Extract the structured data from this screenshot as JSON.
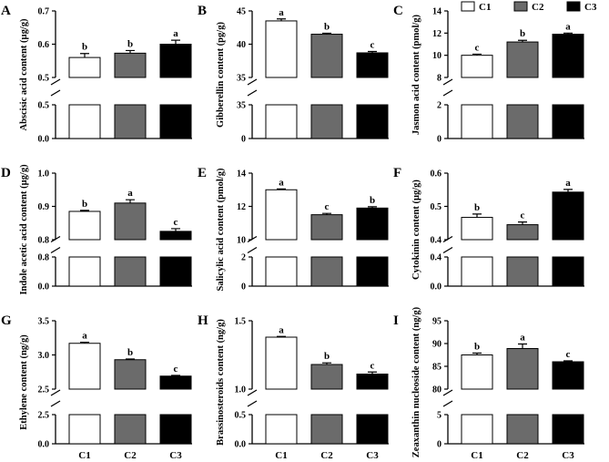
{
  "series_colors": {
    "C1": "#ffffff",
    "C2": "#6b6b6b",
    "C3": "#000000"
  },
  "legend": {
    "items": [
      "C1",
      "C2",
      "C3"
    ]
  },
  "chart_data": [
    {
      "type": "bar",
      "panel": "A",
      "ylabel": "Abscisic acid content (µg/g)",
      "categories": [
        "C1",
        "C2",
        "C3"
      ],
      "values": [
        0.56,
        0.573,
        0.6
      ],
      "errors": [
        0.012,
        0.008,
        0.012
      ],
      "significance": [
        "b",
        "b",
        "a"
      ],
      "upper_range": [
        0.5,
        0.7
      ],
      "upper_ticks": [
        "0.5",
        "0.6",
        "0.7"
      ],
      "lower_range": [
        0.0,
        0.5
      ],
      "lower_ticks": [
        "0.0",
        "0.5"
      ],
      "show_x_labels": false
    },
    {
      "type": "bar",
      "panel": "B",
      "ylabel": "Gibberellin content (pg/g)",
      "categories": [
        "C1",
        "C2",
        "C3"
      ],
      "values": [
        43.5,
        41.5,
        38.7
      ],
      "errors": [
        0.3,
        0.15,
        0.2
      ],
      "significance": [
        "a",
        "b",
        "c"
      ],
      "upper_range": [
        35,
        45
      ],
      "upper_ticks": [
        "35",
        "40",
        "45"
      ],
      "lower_range": [
        0,
        35
      ],
      "lower_ticks": [
        "0",
        "35"
      ],
      "show_x_labels": false
    },
    {
      "type": "bar",
      "panel": "C",
      "ylabel": "Jasmon acid content (pmol/g)",
      "categories": [
        "C1",
        "C2",
        "C3"
      ],
      "values": [
        10.0,
        11.2,
        11.9
      ],
      "errors": [
        0.1,
        0.15,
        0.1
      ],
      "significance": [
        "c",
        "b",
        "a"
      ],
      "upper_range": [
        8,
        14
      ],
      "upper_ticks": [
        "8",
        "10",
        "12",
        "14"
      ],
      "lower_range": [
        0,
        2
      ],
      "lower_ticks": [
        "0",
        "2"
      ],
      "show_x_labels": false
    },
    {
      "type": "bar",
      "panel": "D",
      "ylabel": "Indole acetic acid content (µg/g)",
      "categories": [
        "C1",
        "C2",
        "C3"
      ],
      "values": [
        0.885,
        0.91,
        0.825
      ],
      "errors": [
        0.003,
        0.01,
        0.008
      ],
      "significance": [
        "b",
        "a",
        "c"
      ],
      "upper_range": [
        0.8,
        1.0
      ],
      "upper_ticks": [
        "0.8",
        "0.9",
        "1.0"
      ],
      "lower_range": [
        0.0,
        0.8
      ],
      "lower_ticks": [
        "0.0",
        "0.8"
      ],
      "show_x_labels": false
    },
    {
      "type": "bar",
      "panel": "E",
      "ylabel": "Salicylic acid content (pmol/g)",
      "categories": [
        "C1",
        "C2",
        "C3"
      ],
      "values": [
        13.0,
        11.5,
        11.9
      ],
      "errors": [
        0.05,
        0.08,
        0.08
      ],
      "significance": [
        "a",
        "c",
        "b"
      ],
      "upper_range": [
        10,
        14
      ],
      "upper_ticks": [
        "10",
        "12",
        "14"
      ],
      "lower_range": [
        0,
        2
      ],
      "lower_ticks": [
        "0",
        "2"
      ],
      "show_x_labels": false
    },
    {
      "type": "bar",
      "panel": "F",
      "ylabel": "Cytokinin content (µg/g)",
      "categories": [
        "C1",
        "C2",
        "C3"
      ],
      "values": [
        0.467,
        0.445,
        0.543
      ],
      "errors": [
        0.01,
        0.008,
        0.008
      ],
      "significance": [
        "b",
        "c",
        "a"
      ],
      "upper_range": [
        0.4,
        0.6
      ],
      "upper_ticks": [
        "0.4",
        "0.5",
        "0.6"
      ],
      "lower_range": [
        0.0,
        0.4
      ],
      "lower_ticks": [
        "0.0",
        "0.4"
      ],
      "show_x_labels": false
    },
    {
      "type": "bar",
      "panel": "G",
      "ylabel": "Ethylene content (ng/g)",
      "categories": [
        "C1",
        "C2",
        "C3"
      ],
      "values": [
        3.17,
        2.93,
        2.69
      ],
      "errors": [
        0.015,
        0.01,
        0.01
      ],
      "significance": [
        "a",
        "b",
        "c"
      ],
      "upper_range": [
        2.5,
        3.5
      ],
      "upper_ticks": [
        "2.5",
        "3.0",
        "3.5"
      ],
      "lower_range": [
        0.0,
        2.5
      ],
      "lower_ticks": [
        "0.0",
        "2.5"
      ],
      "show_x_labels": true
    },
    {
      "type": "bar",
      "panel": "H",
      "ylabel": "Brassinosteroids content (ng/g)",
      "categories": [
        "C1",
        "C2",
        "C3"
      ],
      "values": [
        1.38,
        1.18,
        1.11
      ],
      "errors": [
        0.005,
        0.012,
        0.015
      ],
      "significance": [
        "a",
        "b",
        "c"
      ],
      "upper_range": [
        1.0,
        1.5
      ],
      "upper_ticks": [
        "1.0",
        "1.5"
      ],
      "lower_range": [
        0.0,
        0.5
      ],
      "lower_ticks": [
        "0.0",
        "0.5"
      ],
      "show_x_labels": true
    },
    {
      "type": "bar",
      "panel": "I",
      "ylabel": "Zeaxanthin nucleoside content (ng/g)",
      "categories": [
        "C1",
        "C2",
        "C3"
      ],
      "values": [
        87.5,
        88.9,
        86.0
      ],
      "errors": [
        0.4,
        1.0,
        0.2
      ],
      "significance": [
        "b",
        "a",
        "c"
      ],
      "upper_range": [
        80,
        95
      ],
      "upper_ticks": [
        "80",
        "85",
        "90",
        "95"
      ],
      "lower_range": [
        0,
        5
      ],
      "lower_ticks": [
        "0",
        "5"
      ],
      "show_x_labels": true
    }
  ]
}
